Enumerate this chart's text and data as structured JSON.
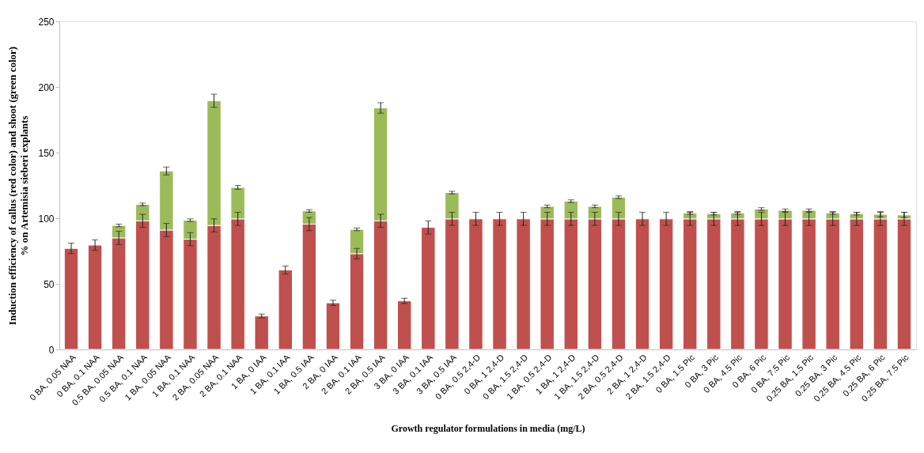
{
  "chart_data": {
    "type": "bar",
    "stacked": true,
    "xlabel": "Growth regulator formulations in media (mg/L)",
    "ylabel": "Induction efficiency of callus (red color) and shoot (green color)\n% on Artemisia sieberi explants",
    "categories": [
      "0 BA, 0.05 NAA",
      "0 BA, 0.1 NAA",
      "0.5 BA, 0.05 NAA",
      "0.5 BA, 0.1 NAA",
      "1 BA, 0.05 NAA",
      "1 BA, 0.1 NAA",
      "2 BA, 0.05 NAA",
      "2 BA, 0.1 NAA",
      "1 BA, 0 IAA",
      "1 BA, 0.1 IAA",
      "1 BA, 0.5 IAA",
      "2 BA, 0 IAA",
      "2 BA, 0.1 IAA",
      "2 BA, 0.5 IAA",
      "3 BA, 0 IAA",
      "3 BA, 0.1 IAA",
      "3 BA, 0.5 IAA",
      "0 BA, 0.5 2,4-D",
      "0 BA, 1 2,4-D",
      "0 BA, 1.5 2,4-D",
      "1 BA, 0.5 2,4-D",
      "1 BA, 1 2,4-D",
      "1 BA, 1.5 2,4-D",
      "2 BA, 0.5 2,4-D",
      "2 BA, 1 2,4-D",
      "2 BA, 1.5 2,4-D",
      "0 BA, 1.5 Pic",
      "0 BA, 3 Pic",
      "0 BA, 4.5 Pic",
      "0 BA, 6 Pic",
      "0 BA, 7.5 Pic",
      "0.25 BA, 1.5 Pic",
      "0.25 BA, 3 Pic",
      "0.25 BA, 4.5 Pic",
      "0.25 BA, 6 Pic",
      "0.25 BA, 7.5 Pic"
    ],
    "series": [
      {
        "color": "#c0504d",
        "values": [
          77,
          79.5,
          85,
          98,
          91,
          84,
          94.5,
          99.5,
          25.5,
          60.5,
          95.5,
          35.5,
          73,
          98,
          37,
          93,
          99.5,
          99.5,
          99.5,
          99.5,
          99.5,
          99.5,
          99.5,
          99.5,
          99.5,
          99.5,
          99.5,
          99.5,
          99.5,
          99.5,
          99.5,
          99.5,
          99.5,
          99.5,
          99.5,
          99.5
        ],
        "errors": [
          4,
          4,
          5,
          5,
          5,
          5,
          5,
          5,
          1.5,
          3,
          5,
          2,
          4,
          5,
          2,
          5,
          5,
          5,
          5,
          5,
          5,
          5,
          5,
          5,
          5,
          5,
          5,
          5,
          5,
          5,
          5,
          5,
          5,
          5,
          5,
          5
        ]
      },
      {
        "color": "#9bbb59",
        "values": [
          null,
          null,
          9.5,
          12.5,
          45,
          14.5,
          95,
          24,
          null,
          null,
          10,
          null,
          18.5,
          86,
          null,
          null,
          20,
          null,
          null,
          null,
          9.5,
          13.5,
          9.5,
          16.5,
          null,
          null,
          4.5,
          4,
          4.5,
          7.5,
          6.5,
          6.5,
          4.5,
          4,
          3.5,
          3
        ],
        "errors": [
          null,
          null,
          1,
          1,
          3,
          1,
          5,
          1.5,
          null,
          null,
          1,
          null,
          1,
          4,
          null,
          null,
          1,
          null,
          null,
          null,
          1,
          1,
          1,
          1,
          null,
          null,
          1,
          1,
          1,
          1,
          1,
          1,
          1,
          1,
          2,
          2
        ]
      }
    ],
    "ylim": [
      0,
      250
    ],
    "yticks": [
      0,
      50,
      100,
      150,
      200,
      250
    ],
    "grid": false
  }
}
